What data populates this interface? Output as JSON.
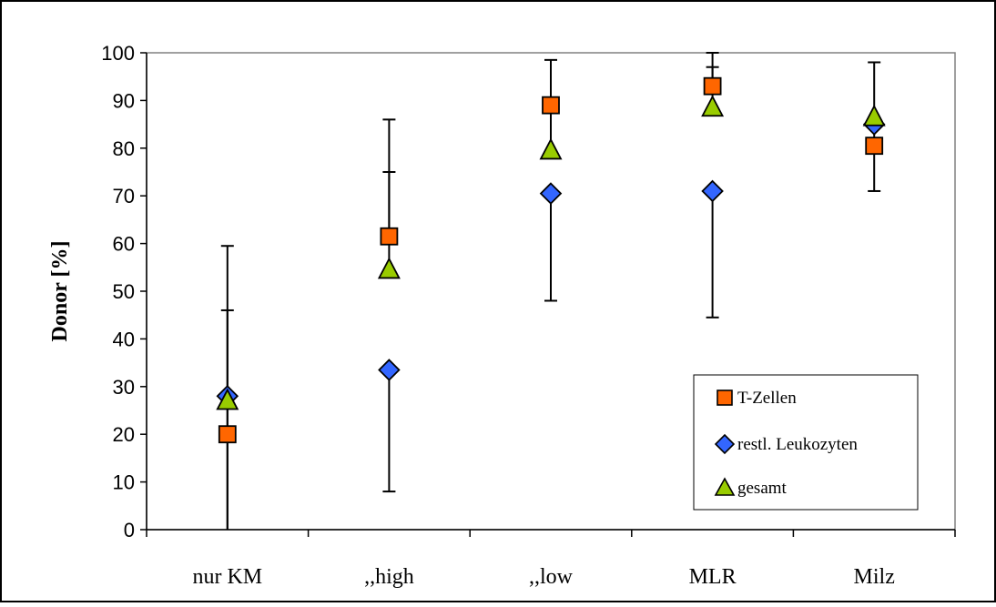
{
  "chart_data": {
    "type": "scatter",
    "ylabel": "Donor [%]",
    "xlabel": "",
    "ylim": [
      0,
      100
    ],
    "yticks": [
      0,
      10,
      20,
      30,
      40,
      50,
      60,
      70,
      80,
      90,
      100
    ],
    "categories": [
      "nur KM",
      ",,high",
      ",,low",
      "MLR",
      "Milz"
    ],
    "legend": {
      "placement": "bottom-right"
    },
    "series": [
      {
        "name": "T-Zellen",
        "marker": "square",
        "color": "#ff6600",
        "values": [
          20,
          61.5,
          89,
          93,
          80.5
        ],
        "err_low": [
          0,
          61.5,
          89,
          93,
          80.5
        ],
        "err_high": [
          46,
          75,
          98.5,
          97,
          80.5
        ]
      },
      {
        "name": "restl. Leukozyten",
        "marker": "diamond",
        "color": "#3366ff",
        "values": [
          28,
          33.5,
          70.5,
          71,
          85
        ],
        "err_low": [
          0,
          8,
          48,
          44.5,
          71
        ],
        "err_high": [
          59.5,
          33.5,
          70.5,
          71,
          98
        ]
      },
      {
        "name": "gesamt",
        "marker": "triangle",
        "color": "#99cc00",
        "values": [
          27,
          54.5,
          79.5,
          88.5,
          86.5
        ],
        "err_low": [
          27,
          54.5,
          79.5,
          88.5,
          86.5
        ],
        "err_high": [
          27,
          86,
          90,
          100,
          86.5
        ]
      }
    ]
  }
}
